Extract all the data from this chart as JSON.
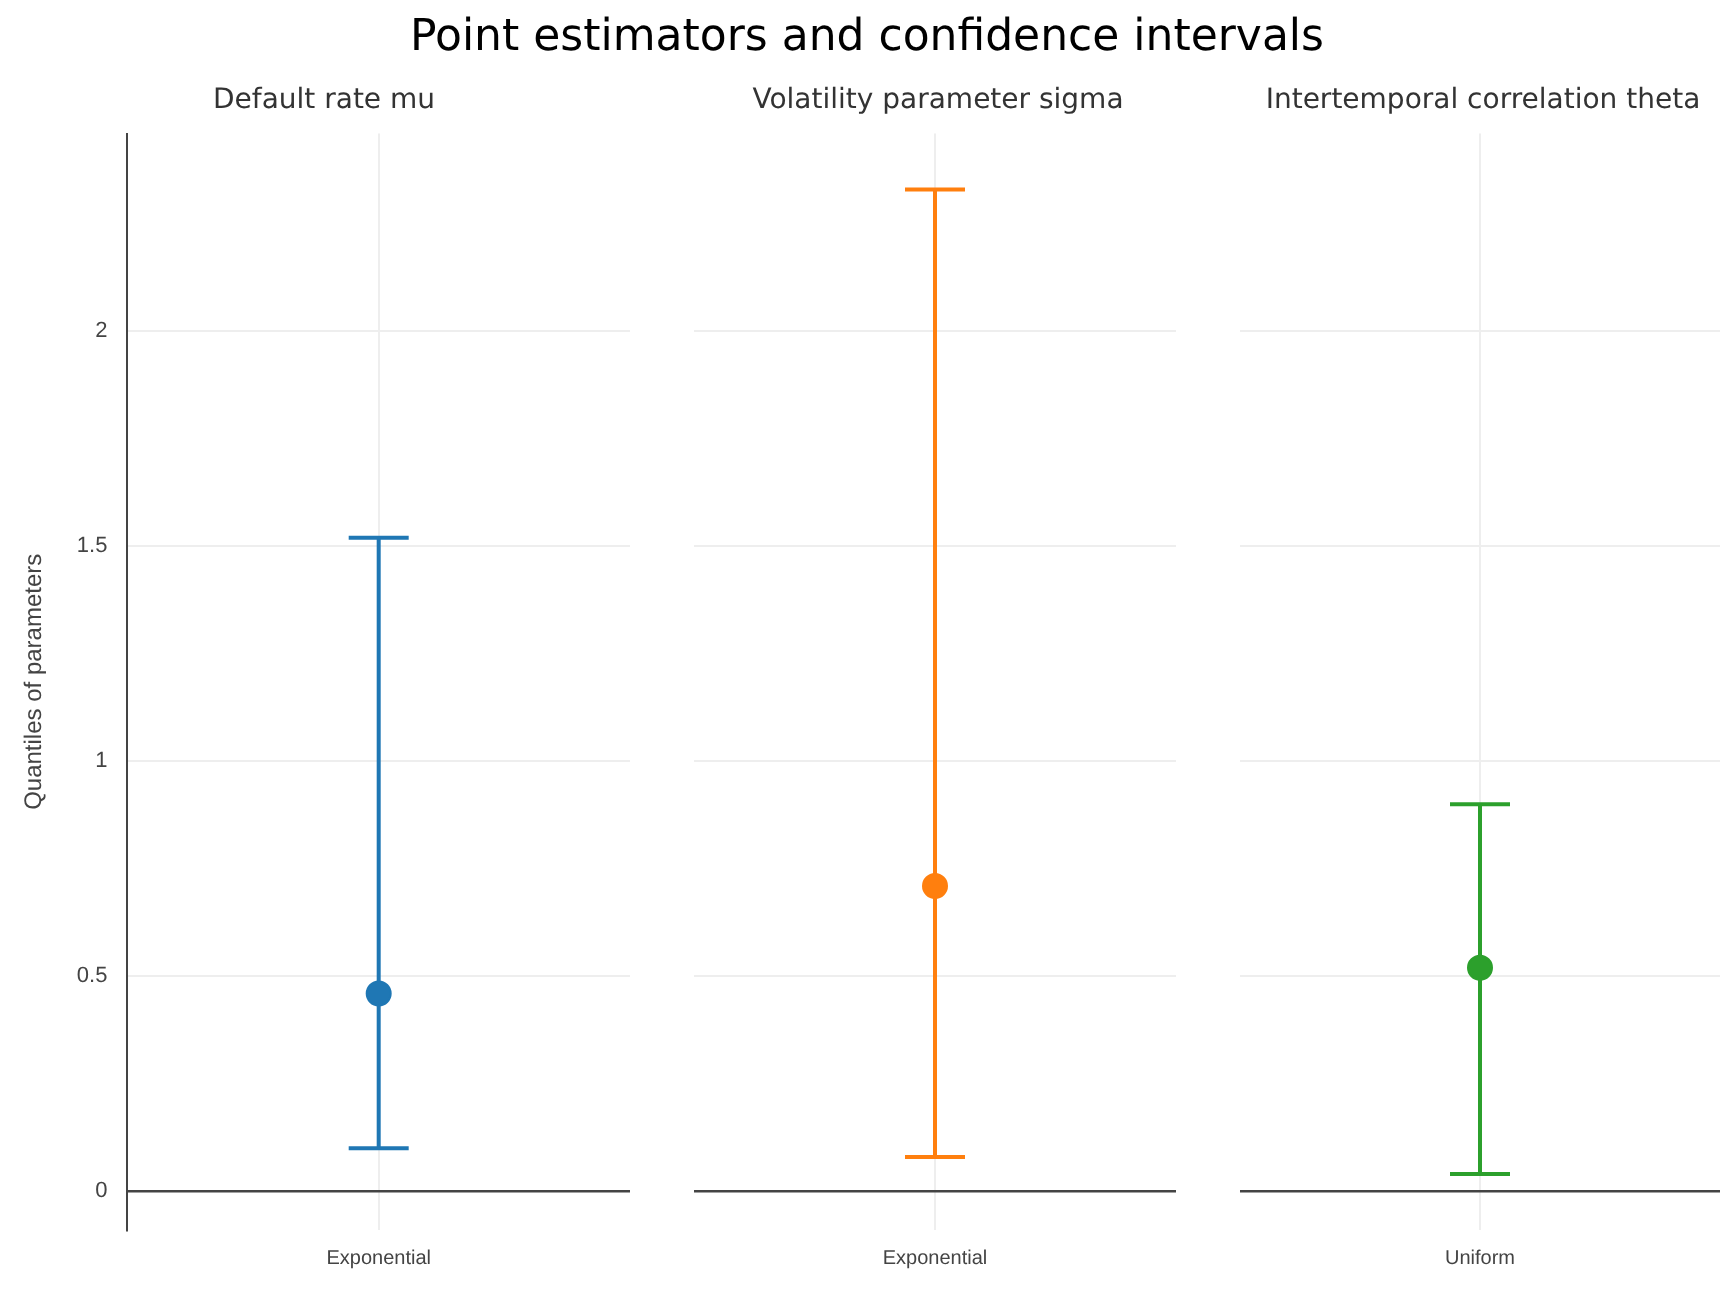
{
  "chart_data": [
    {
      "type": "scatter",
      "title": "Point estimators and confidence intervals",
      "subtitle": "Default rate mu",
      "ylabel": "Quantiles of parameters",
      "categories": [
        "Exponential"
      ],
      "values": [
        0.46
      ],
      "errors": [
        [
          0.1,
          1.52
        ]
      ],
      "color": "#1f77b4",
      "ylim": [
        -0.09,
        2.46
      ],
      "yticks": [
        0,
        0.5,
        1,
        1.5,
        2
      ],
      "grid": true,
      "marker": "circle",
      "legend": false
    },
    {
      "type": "scatter",
      "subtitle": "Volatility parameter sigma",
      "categories": [
        "Exponential"
      ],
      "values": [
        0.71
      ],
      "errors": [
        [
          0.08,
          2.33
        ]
      ],
      "color": "#ff7f0e",
      "ylim": [
        -0.09,
        2.46
      ],
      "yticks": [
        0,
        0.5,
        1,
        1.5,
        2
      ],
      "grid": true,
      "marker": "circle",
      "legend": false,
      "tick_labels": "x"
    },
    {
      "type": "scatter",
      "subtitle": "Intertemporal correlation theta",
      "categories": [
        "Uniform"
      ],
      "values": [
        0.52
      ],
      "errors": [
        [
          0.04,
          0.9
        ]
      ],
      "color": "#2ca02c",
      "ylim": [
        -0.09,
        2.46
      ],
      "yticks": [
        0,
        0.5,
        1,
        1.5,
        2
      ],
      "grid": true,
      "marker": "circle",
      "legend": false,
      "tick_labels": "x"
    }
  ]
}
